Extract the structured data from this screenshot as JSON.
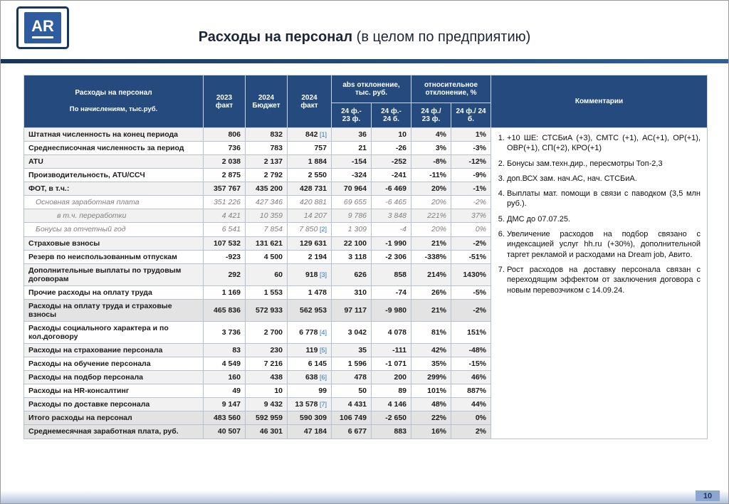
{
  "slide": {
    "logo_text": "AR",
    "title_bold": "Расходы на персонал",
    "title_rest": " (в целом по предприятию)",
    "page_number": "10"
  },
  "table": {
    "header": {
      "label_line1": "Расходы на персонал",
      "label_line2": "По начислениям, тыс.руб.",
      "col_2023": "2023\nфакт",
      "col_2024_budget": "2024\nБюджет",
      "col_2024_fact": "2024\nфакт",
      "group_abs": "abs отклонение,\nтыс. руб.",
      "group_rel": "относительное\nотклонение, %",
      "sub_abs_1": "24 ф.-\n23 ф.",
      "sub_abs_2": "24 ф.-\n24 б.",
      "sub_rel_1": "24 ф./\n23 ф.",
      "sub_rel_2": "24 ф./ 24\nб.",
      "comments": "Комментарии"
    },
    "rows": [
      {
        "label": "Штатная численность на конец периода",
        "style": "bold",
        "indent": 0,
        "y2023": "806",
        "b2024": "832",
        "f2024": "842",
        "ref": "1",
        "d_abs_23": "36",
        "d_abs_24": "10",
        "d_rel_23": "4%",
        "d_rel_24": "1%"
      },
      {
        "label": "Среднесписочная численность за период",
        "style": "bold",
        "indent": 0,
        "y2023": "736",
        "b2024": "783",
        "f2024": "757",
        "ref": "",
        "d_abs_23": "21",
        "d_abs_24": "-26",
        "d_rel_23": "3%",
        "d_rel_24": "-3%"
      },
      {
        "label": "ATU",
        "style": "bold",
        "indent": 0,
        "y2023": "2 038",
        "b2024": "2 137",
        "f2024": "1 884",
        "ref": "",
        "d_abs_23": "-154",
        "d_abs_24": "-252",
        "d_rel_23": "-8%",
        "d_rel_24": "-12%"
      },
      {
        "label": "Производительность, ATU/ССЧ",
        "style": "bold",
        "indent": 0,
        "y2023": "2 875",
        "b2024": "2 792",
        "f2024": "2 550",
        "ref": "",
        "d_abs_23": "-324",
        "d_abs_24": "-241",
        "d_rel_23": "-11%",
        "d_rel_24": "-9%"
      },
      {
        "label": "ФОТ, в т.ч.:",
        "style": "bold",
        "indent": 0,
        "y2023": "357 767",
        "b2024": "435 200",
        "f2024": "428 731",
        "ref": "",
        "d_abs_23": "70 964",
        "d_abs_24": "-6 469",
        "d_rel_23": "20%",
        "d_rel_24": "-1%"
      },
      {
        "label": "Основная заработная плата",
        "style": "italic",
        "indent": 1,
        "y2023": "351 226",
        "b2024": "427 346",
        "f2024": "420 881",
        "ref": "",
        "d_abs_23": "69 655",
        "d_abs_24": "-6 465",
        "d_rel_23": "20%",
        "d_rel_24": "-2%"
      },
      {
        "label": "в т.ч. переработки",
        "style": "italic",
        "indent": 2,
        "y2023": "4 421",
        "b2024": "10 359",
        "f2024": "14 207",
        "ref": "",
        "d_abs_23": "9 786",
        "d_abs_24": "3 848",
        "d_rel_23": "221%",
        "d_rel_24": "37%"
      },
      {
        "label": "Бонусы за отчетный год",
        "style": "italic",
        "indent": 1,
        "y2023": "6 541",
        "b2024": "7 854",
        "f2024": "7 850",
        "ref": "2",
        "d_abs_23": "1 309",
        "d_abs_24": "-4",
        "d_rel_23": "20%",
        "d_rel_24": "0%"
      },
      {
        "label": "Страховые взносы",
        "style": "bold",
        "indent": 0,
        "y2023": "107 532",
        "b2024": "131 621",
        "f2024": "129 631",
        "ref": "",
        "d_abs_23": "22 100",
        "d_abs_24": "-1 990",
        "d_rel_23": "21%",
        "d_rel_24": "-2%"
      },
      {
        "label": "Резерв по неиспользованным отпускам",
        "style": "bold",
        "indent": 0,
        "y2023": "-923",
        "b2024": "4 500",
        "f2024": "2 194",
        "ref": "",
        "d_abs_23": "3 118",
        "d_abs_24": "-2 306",
        "d_rel_23": "-338%",
        "d_rel_24": "-51%"
      },
      {
        "label": "Дополнительные выплаты по трудовым договорам",
        "style": "bold",
        "indent": 0,
        "y2023": "292",
        "b2024": "60",
        "f2024": "918",
        "ref": "3",
        "d_abs_23": "626",
        "d_abs_24": "858",
        "d_rel_23": "214%",
        "d_rel_24": "1430%"
      },
      {
        "label": "Прочие расходы на оплату труда",
        "style": "bold",
        "indent": 0,
        "y2023": "1 169",
        "b2024": "1 553",
        "f2024": "1 478",
        "ref": "",
        "d_abs_23": "310",
        "d_abs_24": "-74",
        "d_rel_23": "26%",
        "d_rel_24": "-5%"
      },
      {
        "label": "Расходы на оплату труда и страховые взносы",
        "style": "total",
        "indent": 0,
        "y2023": "465 836",
        "b2024": "572 933",
        "f2024": "562 953",
        "ref": "",
        "d_abs_23": "97 117",
        "d_abs_24": "-9 980",
        "d_rel_23": "21%",
        "d_rel_24": "-2%"
      },
      {
        "label": "Расходы социального характера и по кол.договору",
        "style": "bold",
        "indent": 0,
        "y2023": "3 736",
        "b2024": "2 700",
        "f2024": "6 778",
        "ref": "4",
        "d_abs_23": "3 042",
        "d_abs_24": "4 078",
        "d_rel_23": "81%",
        "d_rel_24": "151%"
      },
      {
        "label": "Расходы на страхование персонала",
        "style": "bold",
        "indent": 0,
        "y2023": "83",
        "b2024": "230",
        "f2024": "119",
        "ref": "5",
        "d_abs_23": "35",
        "d_abs_24": "-111",
        "d_rel_23": "42%",
        "d_rel_24": "-48%"
      },
      {
        "label": "Расходы на обучение персонала",
        "style": "bold",
        "indent": 0,
        "y2023": "4 549",
        "b2024": "7 216",
        "f2024": "6 145",
        "ref": "",
        "d_abs_23": "1 596",
        "d_abs_24": "-1 071",
        "d_rel_23": "35%",
        "d_rel_24": "-15%"
      },
      {
        "label": "Расходы на подбор персонала",
        "style": "bold",
        "indent": 0,
        "y2023": "160",
        "b2024": "438",
        "f2024": "638",
        "ref": "6",
        "d_abs_23": "478",
        "d_abs_24": "200",
        "d_rel_23": "299%",
        "d_rel_24": "46%"
      },
      {
        "label": "Расходы на HR-консалтинг",
        "style": "bold",
        "indent": 0,
        "y2023": "49",
        "b2024": "10",
        "f2024": "99",
        "ref": "",
        "d_abs_23": "50",
        "d_abs_24": "89",
        "d_rel_23": "101%",
        "d_rel_24": "887%"
      },
      {
        "label": "Расходы по доставке персонала",
        "style": "bold",
        "indent": 0,
        "y2023": "9 147",
        "b2024": "9 432",
        "f2024": "13 578",
        "ref": "7",
        "d_abs_23": "4 431",
        "d_abs_24": "4 146",
        "d_rel_23": "48%",
        "d_rel_24": "44%"
      },
      {
        "label": "Итого расходы на персонал",
        "style": "total",
        "indent": 0,
        "y2023": "483 560",
        "b2024": "592 959",
        "f2024": "590 309",
        "ref": "",
        "d_abs_23": "106 749",
        "d_abs_24": "-2 650",
        "d_rel_23": "22%",
        "d_rel_24": "0%"
      },
      {
        "label": "Среднемесячная заработная плата, руб.",
        "style": "total",
        "indent": 0,
        "y2023": "40 507",
        "b2024": "46 301",
        "f2024": "47 184",
        "ref": "",
        "d_abs_23": "6 677",
        "d_abs_24": "883",
        "d_rel_23": "16%",
        "d_rel_24": "2%"
      }
    ]
  },
  "comments": {
    "items": [
      "+10 ШЕ: СТСБиА (+3), СМТС (+1), АС(+1), ОР(+1), ОВР(+1), СП(+2), КРО(+1)",
      "Бонусы зам.техн.дир., пересмотры Топ-2,3",
      "доп.ВСХ зам. нач.АС, нач. СТСБиА.",
      "Выплаты мат. помощи в связи с паводком (3,5 млн руб.).",
      "ДМС до 07.07.25.",
      "Увеличение расходов на подбор связано с индексацией услуг hh.ru (+30%), дополнительной таргет рекламой и расходами на Dream job, Авито.",
      "Рост расходов на доставку персонала связан с переходящим эффектом от заключения договора с новым перевозчиком с 14.09.24."
    ]
  }
}
